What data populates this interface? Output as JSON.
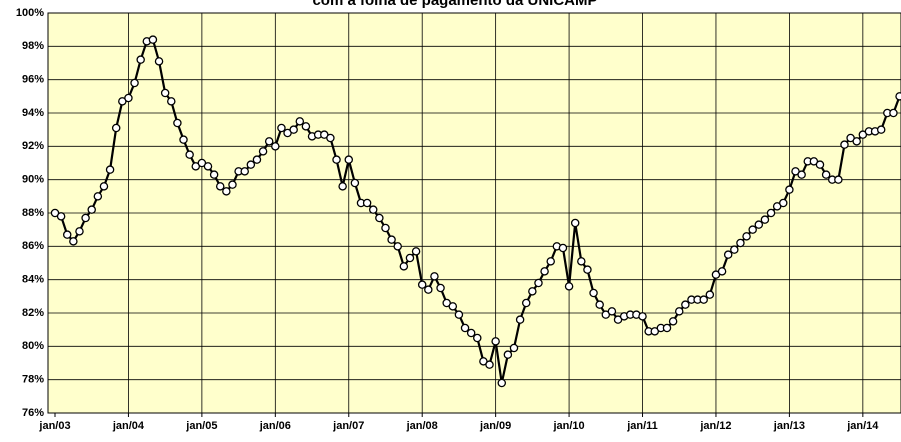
{
  "chart_data": {
    "type": "line",
    "title": "com a folha de pagamento da UNICAMP",
    "categories": [
      "jan/03",
      null,
      null,
      null,
      null,
      null,
      null,
      null,
      null,
      null,
      null,
      null,
      "jan/04",
      null,
      null,
      null,
      null,
      null,
      null,
      null,
      null,
      null,
      null,
      null,
      "jan/05",
      null,
      null,
      null,
      null,
      null,
      null,
      null,
      null,
      null,
      null,
      null,
      "jan/06",
      null,
      null,
      null,
      null,
      null,
      null,
      null,
      null,
      null,
      null,
      null,
      "jan/07",
      null,
      null,
      null,
      null,
      null,
      null,
      null,
      null,
      null,
      null,
      null,
      "jan/08",
      null,
      null,
      null,
      null,
      null,
      null,
      null,
      null,
      null,
      null,
      null,
      "jan/09",
      null,
      null,
      null,
      null,
      null,
      null,
      null,
      null,
      null,
      null,
      null,
      "jan/10",
      null,
      null,
      null,
      null,
      null,
      null,
      null,
      null,
      null,
      null,
      null,
      "jan/11",
      null,
      null,
      null,
      null,
      null,
      null,
      null,
      null,
      null,
      null,
      null,
      "jan/12",
      null,
      null,
      null,
      null,
      null,
      null,
      null,
      null,
      null,
      null,
      null,
      "jan/13",
      null,
      null,
      null,
      null,
      null,
      null,
      null,
      null,
      null,
      null,
      null,
      "jan/14",
      null,
      null,
      null,
      null,
      null,
      null
    ],
    "values": [
      88.0,
      87.8,
      86.7,
      86.3,
      86.9,
      87.7,
      88.2,
      89.0,
      89.6,
      90.6,
      93.1,
      94.7,
      94.9,
      95.8,
      97.2,
      98.3,
      98.4,
      97.1,
      95.2,
      94.7,
      93.4,
      92.4,
      91.5,
      90.8,
      91.0,
      90.8,
      90.3,
      89.6,
      89.3,
      89.7,
      90.5,
      90.5,
      90.9,
      91.2,
      91.7,
      92.3,
      92.0,
      93.1,
      92.8,
      93.0,
      93.5,
      93.2,
      92.6,
      92.7,
      92.7,
      92.5,
      91.2,
      89.6,
      91.2,
      89.8,
      88.6,
      88.6,
      88.2,
      87.7,
      87.1,
      86.4,
      86.0,
      84.8,
      85.3,
      85.7,
      83.7,
      83.4,
      84.2,
      83.5,
      82.6,
      82.4,
      81.9,
      81.1,
      80.8,
      80.5,
      79.1,
      78.9,
      80.3,
      77.8,
      79.5,
      79.9,
      81.6,
      82.6,
      83.3,
      83.8,
      84.5,
      85.1,
      86.0,
      85.9,
      83.6,
      87.4,
      85.1,
      84.6,
      83.2,
      82.5,
      81.9,
      82.1,
      81.6,
      81.8,
      81.9,
      81.9,
      81.8,
      80.9,
      80.9,
      81.1,
      81.1,
      81.5,
      82.1,
      82.5,
      82.8,
      82.8,
      82.8,
      83.1,
      84.3,
      84.5,
      85.5,
      85.8,
      86.2,
      86.6,
      87.0,
      87.3,
      87.6,
      88.0,
      88.4,
      88.6,
      89.4,
      90.5,
      90.3,
      91.1,
      91.1,
      90.9,
      90.3,
      90.0,
      90.0,
      92.1,
      92.5,
      92.3,
      92.7,
      92.9,
      92.9,
      93.0,
      94.0,
      94.0,
      95.0
    ],
    "color": "#000000",
    "background": "#ffffcc",
    "ylim": [
      76,
      100
    ],
    "yticks": [
      {
        "value": 76,
        "label": "76%"
      },
      {
        "value": 78,
        "label": "78%"
      },
      {
        "value": 80,
        "label": "80%"
      },
      {
        "value": 82,
        "label": "82%"
      },
      {
        "value": 84,
        "label": "84%"
      },
      {
        "value": 86,
        "label": "86%"
      },
      {
        "value": 88,
        "label": "88%"
      },
      {
        "value": 90,
        "label": "90%"
      },
      {
        "value": 92,
        "label": "92%"
      },
      {
        "value": 94,
        "label": "94%"
      },
      {
        "value": 96,
        "label": "96%"
      },
      {
        "value": 98,
        "label": "98%"
      },
      {
        "value": 100,
        "label": "100%"
      }
    ],
    "grid": true
  }
}
